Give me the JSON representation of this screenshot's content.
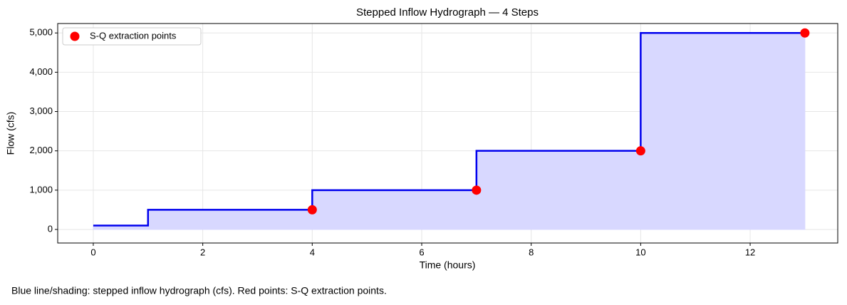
{
  "chart_data": {
    "type": "line",
    "title": "Stepped Inflow Hydrograph — 4 Steps",
    "x_label": "Time (hours)",
    "y_label": "Flow (cfs)",
    "caption": "Blue line/shading: stepped inflow hydrograph (cfs). Red points: S-Q extraction points.",
    "xlim": [
      -0.65,
      13.6
    ],
    "ylim": [
      -345,
      5240
    ],
    "xticks": [
      0,
      2,
      4,
      6,
      8,
      10,
      12
    ],
    "yticks": [
      0,
      {
        "value": 1000,
        "label": "1,000"
      },
      {
        "value": 2000,
        "label": "2,000"
      },
      {
        "value": 3000,
        "label": "3,000"
      },
      {
        "value": 4000,
        "label": "4,000"
      },
      {
        "value": 5000,
        "label": "5,000"
      }
    ],
    "grid": true,
    "legend": "upper left",
    "series": [
      {
        "type": "step",
        "step": "post",
        "fill": true,
        "color": "#0000ee",
        "fill_color": "#d8d8ff",
        "x": [
          0,
          1,
          4,
          7,
          10,
          13
        ],
        "values": [
          100,
          500,
          1000,
          2000,
          5000,
          5000
        ]
      },
      {
        "type": "scatter",
        "name": "S-Q extraction points",
        "color": "#ff0000",
        "x": [
          4,
          7,
          10,
          13
        ],
        "values": [
          500,
          1000,
          2000,
          5000
        ]
      }
    ]
  }
}
